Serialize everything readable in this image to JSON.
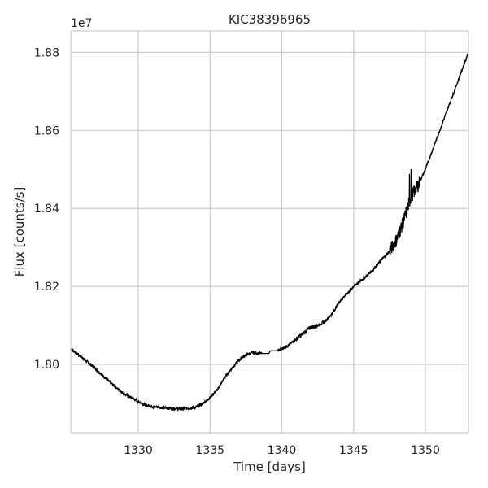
{
  "chart_data": {
    "type": "line",
    "title": "KIC38396965",
    "xlabel": "Time [days]",
    "ylabel": "Flux [counts/s]",
    "offset_label": "1e7",
    "xlim": [
      1325.3,
      1353.0
    ],
    "ylim": [
      17.825,
      18.855
    ],
    "xticks": [
      1330,
      1335,
      1340,
      1345,
      1350
    ],
    "yticks": [
      18.0,
      18.2,
      18.4,
      18.6,
      18.8
    ],
    "ytick_labels": [
      "1.80",
      "1.82",
      "1.84",
      "1.86",
      "1.88"
    ],
    "grid": true,
    "colors": {
      "line": "#000000",
      "grid": "#cccccc",
      "frame": "#cccccc"
    },
    "series": [
      {
        "x": [
          1325.3,
          1326.0,
          1327.0,
          1328.0,
          1329.0,
          1330.0,
          1330.5,
          1331.0,
          1332.0,
          1333.0,
          1334.0,
          1334.5,
          1335.0,
          1335.5,
          1336.0,
          1336.5,
          1337.0,
          1337.5,
          1338.0,
          1338.5,
          1338.6,
          1339.1,
          1339.2,
          1339.7,
          1340.0,
          1340.5,
          1341.0,
          1341.5,
          1342.0,
          1342.5,
          1343.0,
          1343.5,
          1344.0,
          1344.5,
          1345.0,
          1345.5,
          1346.0,
          1346.5,
          1347.0,
          1347.5,
          1348.0,
          1348.5,
          1349.0,
          1349.5,
          1350.0,
          1350.5,
          1351.0,
          1351.5,
          1352.0,
          1352.5,
          1353.0
        ],
        "y": [
          18.04,
          18.02,
          17.99,
          17.955,
          17.925,
          17.905,
          17.896,
          17.892,
          17.888,
          17.886,
          17.89,
          17.9,
          17.915,
          17.935,
          17.965,
          17.99,
          18.01,
          18.025,
          18.03,
          18.028,
          18.028,
          18.028,
          18.035,
          18.035,
          18.04,
          18.05,
          18.065,
          18.08,
          18.095,
          18.1,
          18.11,
          18.13,
          18.16,
          18.18,
          18.2,
          18.215,
          18.23,
          18.25,
          18.27,
          18.29,
          18.32,
          18.37,
          18.43,
          18.46,
          18.5,
          18.55,
          18.6,
          18.65,
          18.7,
          18.75,
          18.8
        ]
      }
    ]
  }
}
